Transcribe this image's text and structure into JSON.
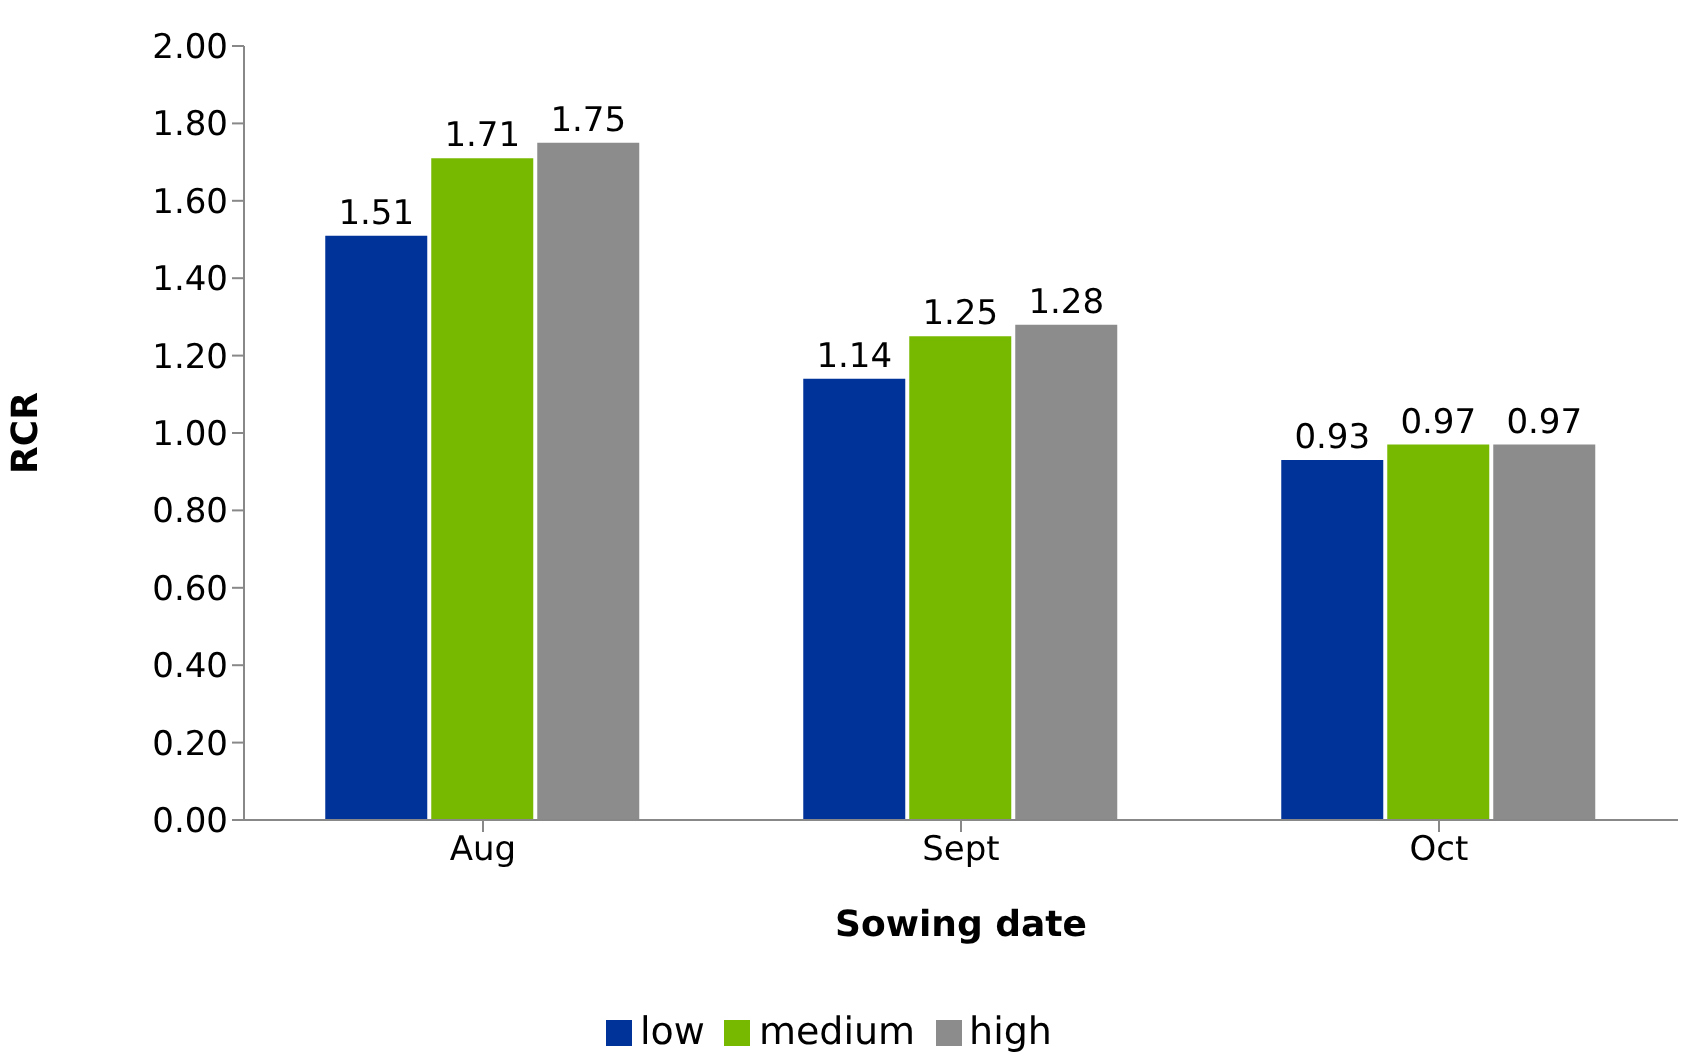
{
  "chart_data": {
    "type": "bar",
    "categories": [
      "Aug",
      "Sept",
      "Oct"
    ],
    "series": [
      {
        "name": "low",
        "color": "#003399",
        "values": [
          1.51,
          1.14,
          0.93
        ]
      },
      {
        "name": "medium",
        "color": "#77b800",
        "values": [
          1.71,
          1.25,
          0.97
        ]
      },
      {
        "name": "high",
        "color": "#8c8c8c",
        "values": [
          1.75,
          1.28,
          0.97
        ]
      }
    ],
    "xlabel": "Sowing date",
    "ylabel": "RCR",
    "ylim": [
      0,
      2
    ],
    "yticks": [
      {
        "value": 0,
        "label": "0.00"
      },
      {
        "value": 0.2,
        "label": "0.20"
      },
      {
        "value": 0.4,
        "label": "0.40"
      },
      {
        "value": 0.6,
        "label": "0.60"
      },
      {
        "value": 0.8,
        "label": "0.80"
      },
      {
        "value": 1,
        "label": "1.00"
      },
      {
        "value": 1.2,
        "label": "1.20"
      },
      {
        "value": 1.4,
        "label": "1.40"
      },
      {
        "value": 1.6,
        "label": "1.60"
      },
      {
        "value": 1.8,
        "label": "1.80"
      },
      {
        "value": 2,
        "label": "2.00"
      }
    ],
    "data_labels": true,
    "legend": "bottom",
    "grid": false
  }
}
